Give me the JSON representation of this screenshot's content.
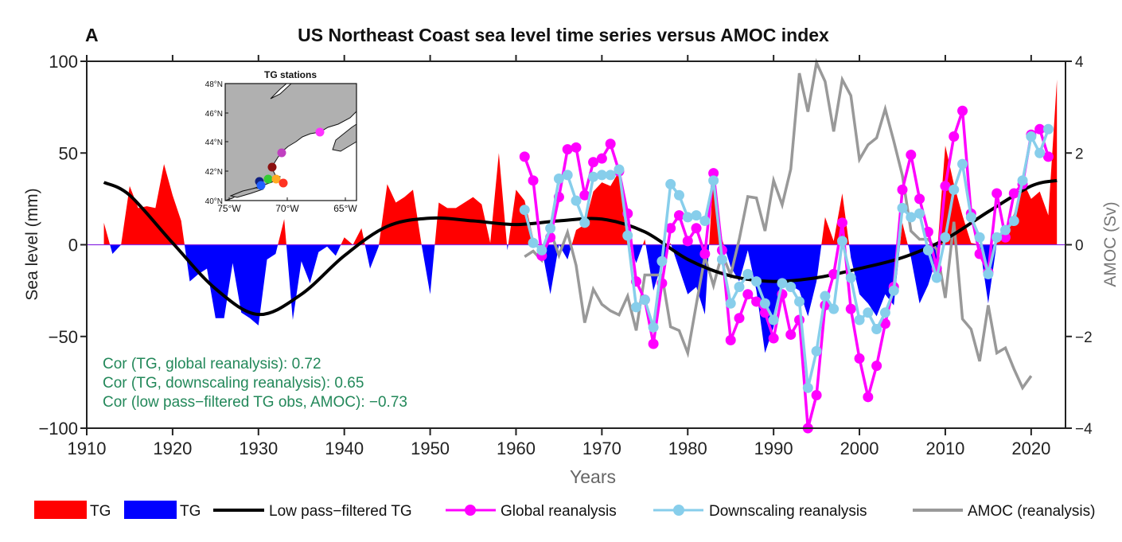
{
  "chart_data": {
    "type": "area+line",
    "panel_label": "A",
    "title": "US Northeast Coast sea level time series  versus  AMOC index",
    "xlabel": "Years",
    "ylabel": "Sea level (mm)",
    "y2label": "AMOC  (Sv)",
    "xlim": [
      1910,
      2024
    ],
    "ylim": [
      -100,
      100
    ],
    "y2lim": [
      -4,
      4
    ],
    "xticks": [
      1910,
      1920,
      1930,
      1940,
      1950,
      1960,
      1970,
      1980,
      1990,
      2000,
      2010,
      2020
    ],
    "yticks": [
      100,
      50,
      0,
      -50,
      -100
    ],
    "y2ticks": [
      4,
      2,
      0,
      -2,
      -4
    ],
    "grid": false,
    "legend_position": "bottom",
    "colors": {
      "tg_pos": "#ff0000",
      "tg_neg": "#0000ff",
      "lowpass": "#000000",
      "global": "#ff00ff",
      "downscaling": "#87ceeb",
      "amoc": "#999999",
      "annotation": "#23885a"
    },
    "series": [
      {
        "name": "TG",
        "key": "tg",
        "axis": "left",
        "x": [
          1912,
          1913,
          1914,
          1915,
          1916,
          1917,
          1918,
          1919,
          1920,
          1921,
          1922,
          1923,
          1924,
          1925,
          1926,
          1927,
          1928,
          1929,
          1930,
          1931,
          1932,
          1933,
          1934,
          1935,
          1936,
          1937,
          1938,
          1939,
          1940,
          1941,
          1942,
          1943,
          1944,
          1945,
          1946,
          1947,
          1948,
          1949,
          1950,
          1951,
          1952,
          1953,
          1954,
          1955,
          1956,
          1957,
          1958,
          1959,
          1960,
          1961,
          1962,
          1963,
          1964,
          1965,
          1966,
          1967,
          1968,
          1969,
          1970,
          1971,
          1972,
          1973,
          1974,
          1975,
          1976,
          1977,
          1978,
          1979,
          1980,
          1981,
          1982,
          1983,
          1984,
          1985,
          1986,
          1987,
          1988,
          1989,
          1990,
          1991,
          1992,
          1993,
          1994,
          1995,
          1996,
          1997,
          1998,
          1999,
          2000,
          2001,
          2002,
          2003,
          2004,
          2005,
          2006,
          2007,
          2008,
          2009,
          2010,
          2011,
          2012,
          2013,
          2014,
          2015,
          2016,
          2017,
          2018,
          2019,
          2020,
          2021,
          2022,
          2023
        ],
        "values": [
          12,
          -5,
          0,
          32,
          20,
          21,
          20,
          44,
          27,
          13,
          -20,
          -16,
          -13,
          -40,
          -40,
          -10,
          -37,
          -40,
          -44,
          -8,
          -5,
          14,
          -41,
          -9,
          -21,
          -4,
          -1,
          -6,
          4,
          0,
          9,
          -13,
          -1,
          33,
          23,
          26,
          30,
          0,
          -27,
          23,
          20,
          20,
          23,
          26,
          22,
          1,
          50,
          -3,
          30,
          24,
          4,
          -2,
          -27,
          0,
          -8,
          8,
          11,
          29,
          34,
          32,
          40,
          3,
          -10,
          3,
          -25,
          -10,
          1,
          -13,
          -27,
          -23,
          -38,
          39,
          3,
          -12,
          -20,
          -3,
          -25,
          -59,
          -45,
          -20,
          -22,
          -25,
          -39,
          -20,
          15,
          2,
          28,
          -7,
          -27,
          -32,
          -39,
          -27,
          -33,
          12,
          -7,
          -32,
          -22,
          -7,
          54,
          33,
          16,
          1,
          0,
          -32,
          1,
          4,
          17,
          35,
          25,
          29,
          16,
          90
        ]
      },
      {
        "name": "Low pass−filtered TG",
        "key": "lowpass",
        "axis": "left",
        "x": [
          1912,
          1915,
          1920,
          1925,
          1930,
          1935,
          1940,
          1945,
          1950,
          1955,
          1960,
          1965,
          1970,
          1975,
          1980,
          1985,
          1990,
          1995,
          2000,
          2005,
          2010,
          2015,
          2020,
          2023
        ],
        "values": [
          34,
          27,
          1,
          -24,
          -38,
          -27,
          -6,
          10,
          14.5,
          13,
          11,
          13,
          14,
          7,
          -8,
          -17,
          -20,
          -18,
          -13,
          -7,
          3,
          18,
          32,
          35
        ]
      },
      {
        "name": "Global reanalysis",
        "key": "global",
        "axis": "left",
        "x": [
          1961,
          1962,
          1963,
          1964,
          1965,
          1966,
          1967,
          1968,
          1969,
          1970,
          1971,
          1972,
          1973,
          1974,
          1975,
          1976,
          1977,
          1978,
          1979,
          1980,
          1981,
          1982,
          1983,
          1984,
          1985,
          1986,
          1987,
          1988,
          1989,
          1990,
          1991,
          1992,
          1993,
          1994,
          1995,
          1996,
          1997,
          1998,
          1999,
          2000,
          2001,
          2002,
          2003,
          2004,
          2005,
          2006,
          2007,
          2008,
          2009,
          2010,
          2011,
          2012,
          2013,
          2014,
          2015,
          2016,
          2017,
          2018,
          2019,
          2020,
          2021,
          2022
        ],
        "values": [
          48,
          35,
          -6,
          4,
          26,
          52,
          53,
          27,
          45,
          47,
          55,
          40,
          17,
          -20,
          -30,
          -54,
          -21,
          9,
          16,
          2,
          9,
          -5,
          39,
          -3,
          -52,
          -40,
          -27,
          -31,
          -37,
          -51,
          -27,
          -49,
          -41,
          -100,
          -82,
          -33,
          -16,
          12,
          -35,
          -62,
          -83,
          -66,
          -43,
          -23,
          30,
          49,
          25,
          7,
          -13,
          32,
          59,
          73,
          17,
          -5,
          -15,
          28,
          4,
          28,
          33,
          60,
          63,
          48
        ]
      },
      {
        "name": "Downscaling reanalysis",
        "key": "downscaling",
        "axis": "left",
        "x": [
          1961,
          1962,
          1963,
          1964,
          1965,
          1966,
          1967,
          1968,
          1969,
          1970,
          1971,
          1972,
          1973,
          1974,
          1975,
          1976,
          1977,
          1978,
          1979,
          1980,
          1981,
          1982,
          1983,
          1984,
          1985,
          1986,
          1987,
          1988,
          1989,
          1990,
          1991,
          1992,
          1993,
          1994,
          1995,
          1996,
          1997,
          1998,
          1999,
          2000,
          2001,
          2002,
          2003,
          2004,
          2005,
          2006,
          2007,
          2008,
          2009,
          2010,
          2011,
          2012,
          2013,
          2014,
          2015,
          2016,
          2017,
          2018,
          2019,
          2020,
          2021,
          2022
        ],
        "values": [
          19,
          1,
          -3,
          9,
          36,
          38,
          24,
          12,
          37,
          38,
          38,
          41,
          5,
          -34,
          -30,
          -45,
          -9,
          33,
          27,
          15,
          16,
          13,
          35,
          -8,
          -32,
          -23,
          -16,
          -20,
          -32,
          -41,
          -21,
          -23,
          -31,
          -78,
          -58,
          -28,
          -35,
          2,
          -18,
          -41,
          -37,
          -46,
          -37,
          -25,
          20,
          15,
          17,
          -3,
          -18,
          4,
          30,
          44,
          15,
          4,
          -16,
          4,
          8,
          13,
          35,
          59,
          50,
          63
        ]
      },
      {
        "name": "AMOC (reanalysis)",
        "key": "amoc",
        "axis": "right",
        "x": [
          1961,
          1962,
          1963,
          1964,
          1965,
          1966,
          1967,
          1968,
          1969,
          1970,
          1971,
          1972,
          1973,
          1974,
          1975,
          1976,
          1977,
          1978,
          1979,
          1980,
          1981,
          1982,
          1983,
          1984,
          1985,
          1986,
          1987,
          1988,
          1989,
          1990,
          1991,
          1992,
          1993,
          1994,
          1995,
          1996,
          1997,
          1998,
          1999,
          2000,
          2001,
          2002,
          2003,
          2004,
          2005,
          2006,
          2007,
          2008,
          2009,
          2010,
          2011,
          2012,
          2013,
          2014,
          2015,
          2016,
          2017,
          2018,
          2019,
          2020
        ],
        "values": [
          -0.26,
          -0.14,
          -0.34,
          0.3,
          -0.23,
          0.27,
          -0.45,
          -1.7,
          -0.97,
          -1.3,
          -1.44,
          -1.53,
          -1.12,
          -1.87,
          -0.66,
          -0.66,
          -0.66,
          -1.79,
          -1.87,
          -2.36,
          -1.3,
          -0.26,
          -0.89,
          -0.19,
          -0.66,
          0.12,
          1.05,
          1.02,
          0.3,
          1.4,
          0.87,
          1.65,
          3.74,
          2.9,
          3.97,
          3.56,
          2.47,
          3.6,
          3.25,
          1.86,
          2.18,
          2.33,
          2.96,
          2.26,
          1.51,
          0.3,
          0.12,
          0.12,
          -0.1,
          -1.16,
          0.5,
          -1.62,
          -1.84,
          -2.54,
          -1.32,
          -2.36,
          -2.25,
          -2.71,
          -3.12,
          -2.86
        ]
      }
    ],
    "annotations": [
      "Cor (TG, global reanalysis): 0.72",
      "Cor (TG, downscaling reanalysis): 0.65",
      "Cor (low pass−filtered TG obs, AMOC): −0.73"
    ],
    "legend": [
      "TG",
      "TG",
      "Low pass−filtered TG",
      "Global reanalysis",
      "Downscaling reanalysis",
      "AMOC (reanalysis)"
    ],
    "inset": {
      "title": "TG stations",
      "lat_ticks": [
        "48°N",
        "46°N",
        "44°N",
        "42°N",
        "40°N"
      ],
      "lon_ticks": [
        "75°W",
        "70°W",
        "65°W"
      ],
      "station_colors": [
        "#ff33ff",
        "#c040c0",
        "#8b1010",
        "#102080",
        "#2060ff",
        "#33cc33",
        "#ffaa22",
        "#ff3322"
      ]
    }
  }
}
